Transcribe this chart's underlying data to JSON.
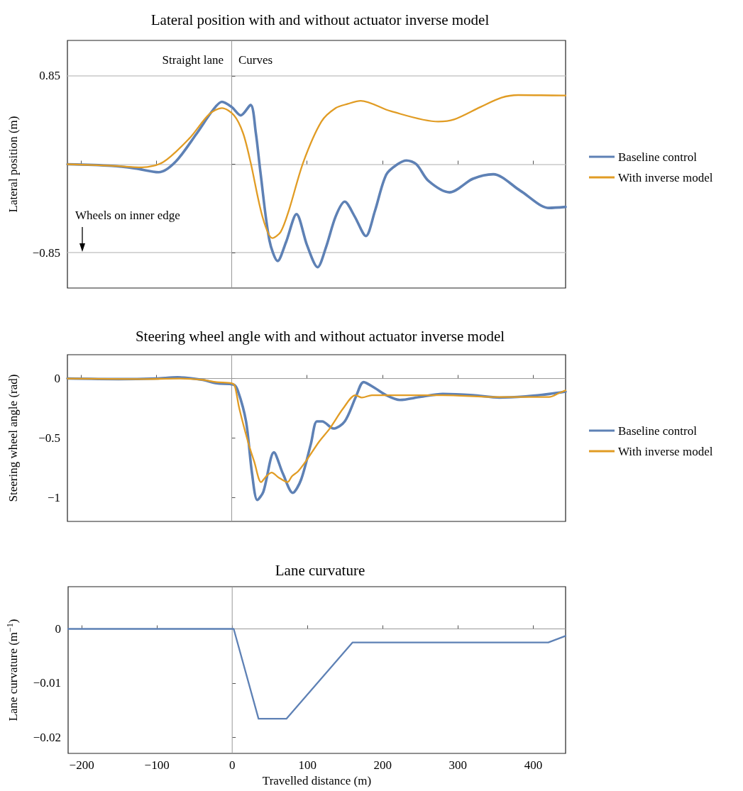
{
  "chart_data": [
    {
      "type": "line",
      "title": "Lateral position with and without actuator inverse model",
      "ylabel": "Lateral position (m)",
      "xlim": [
        -218,
        443
      ],
      "xticks": [
        {
          "value": -200,
          "label": null
        },
        {
          "value": -100,
          "label": null
        },
        {
          "value": 0,
          "label": null
        },
        {
          "value": 100,
          "label": null
        },
        {
          "value": 200,
          "label": null
        },
        {
          "value": 300,
          "label": null
        },
        {
          "value": 400,
          "label": null
        }
      ],
      "ylim": [
        -1.19,
        1.19
      ],
      "yticks": [
        {
          "value": -0.85,
          "label": "−0.85"
        },
        {
          "value": 0,
          "label": null
        },
        {
          "value": 0.85,
          "label": "0.85"
        }
      ],
      "tick_labels": "y",
      "grid": "y",
      "legend": "right",
      "marker": "none",
      "line_style": "solid",
      "ref_lines": [
        {
          "axis": "x",
          "value": 0,
          "color": "#999999"
        }
      ],
      "annotations": [
        "Straight lane",
        "Curves",
        "Wheels on inner edge"
      ],
      "series": [
        {
          "name": "Baseline control",
          "color": "#5e81b5",
          "x": [
            -218,
            -160,
            -128,
            -97,
            -75,
            -47,
            -25,
            -13,
            0,
            12,
            25,
            32,
            38,
            50,
            61,
            72,
            86,
            100,
            114,
            125,
            138,
            150,
            163,
            178,
            190,
            205,
            220,
            232,
            245,
            261,
            289,
            320,
            347,
            383,
            421,
            443
          ],
          "values": [
            0,
            -0.015,
            -0.04,
            -0.077,
            0.02,
            0.29,
            0.52,
            0.6,
            0.55,
            0.47,
            0.57,
            0.3,
            -0.07,
            -0.73,
            -0.93,
            -0.75,
            -0.48,
            -0.78,
            -0.99,
            -0.8,
            -0.5,
            -0.36,
            -0.5,
            -0.69,
            -0.45,
            -0.1,
            0,
            0.036,
            0,
            -0.16,
            -0.27,
            -0.14,
            -0.096,
            -0.255,
            -0.42,
            -0.41
          ]
        },
        {
          "name": "With inverse model",
          "color": "#e19c24",
          "x": [
            -218,
            -160,
            -119,
            -91,
            -56,
            -30,
            -13,
            3,
            15,
            25,
            41,
            54,
            65,
            76,
            95,
            119,
            138,
            154,
            171,
            211,
            274,
            295,
            330,
            358,
            380,
            443
          ],
          "values": [
            0,
            -0.015,
            -0.03,
            0.02,
            0.25,
            0.48,
            0.54,
            0.47,
            0.3,
            0.02,
            -0.51,
            -0.71,
            -0.65,
            -0.44,
            0.02,
            0.41,
            0.54,
            0.58,
            0.61,
            0.51,
            0.41,
            0.43,
            0.55,
            0.64,
            0.665,
            0.66
          ]
        }
      ]
    },
    {
      "type": "line",
      "title": "Steering wheel angle with and without actuator inverse model",
      "ylabel": "Steering wheel angle (rad)",
      "xlim": [
        -218,
        443
      ],
      "xticks": [
        {
          "value": -200,
          "label": null
        },
        {
          "value": -100,
          "label": null
        },
        {
          "value": 0,
          "label": null
        },
        {
          "value": 100,
          "label": null
        },
        {
          "value": 200,
          "label": null
        },
        {
          "value": 300,
          "label": null
        },
        {
          "value": 400,
          "label": null
        }
      ],
      "ylim": [
        -1.2,
        0.2
      ],
      "yticks": [
        {
          "value": -1,
          "label": "−1"
        },
        {
          "value": -0.5,
          "label": "−0.5"
        },
        {
          "value": 0,
          "label": "0"
        }
      ],
      "tick_labels": "y",
      "legend": "right",
      "marker": "none",
      "line_style": "solid",
      "ref_lines": [
        {
          "axis": "x",
          "value": 0,
          "color": "#999999"
        },
        {
          "axis": "y",
          "value": 0,
          "color": "#999999"
        }
      ],
      "series": [
        {
          "name": "Baseline control",
          "color": "#5e81b5",
          "x": [
            -218,
            -150,
            -100,
            -72,
            -40,
            -20,
            2,
            8,
            19,
            27,
            34,
            42,
            56,
            68,
            81,
            92,
            105,
            113,
            120,
            135,
            150,
            165,
            175,
            190,
            205,
            223,
            250,
            280,
            320,
            355,
            390,
            421,
            443
          ],
          "values": [
            0,
            -0.005,
            0,
            0.01,
            -0.01,
            -0.04,
            -0.05,
            -0.1,
            -0.36,
            -0.8,
            -1.02,
            -0.95,
            -0.62,
            -0.8,
            -0.96,
            -0.85,
            -0.55,
            -0.36,
            -0.36,
            -0.42,
            -0.36,
            -0.15,
            -0.03,
            -0.08,
            -0.14,
            -0.18,
            -0.155,
            -0.13,
            -0.14,
            -0.16,
            -0.15,
            -0.13,
            -0.11
          ]
        },
        {
          "name": "With inverse model",
          "color": "#e19c24",
          "x": [
            -218,
            -120,
            -70,
            -40,
            -20,
            0,
            4,
            10,
            22,
            30,
            39,
            46,
            53,
            62,
            74,
            80,
            88,
            100,
            116,
            130,
            148,
            164,
            173,
            186,
            220,
            280,
            350,
            421,
            435,
            443
          ],
          "values": [
            0,
            -0.005,
            0,
            -0.01,
            -0.03,
            -0.04,
            -0.06,
            -0.25,
            -0.54,
            -0.7,
            -0.87,
            -0.82,
            -0.79,
            -0.83,
            -0.87,
            -0.82,
            -0.78,
            -0.68,
            -0.53,
            -0.42,
            -0.25,
            -0.14,
            -0.16,
            -0.14,
            -0.14,
            -0.14,
            -0.155,
            -0.155,
            -0.12,
            -0.1
          ]
        }
      ]
    },
    {
      "type": "line",
      "title": "Lane curvature",
      "ylabel": "Lane curvature (m$^{−1}$)",
      "xlabel": "Travelled distance (m)",
      "xlim": [
        -218,
        443
      ],
      "xticks": [
        {
          "value": -200,
          "label": "−200"
        },
        {
          "value": -100,
          "label": "−100"
        },
        0,
        100,
        200,
        300,
        400
      ],
      "ylim": [
        -0.023,
        0.0078
      ],
      "yticks": [
        {
          "value": -0.02,
          "label": "−0.02"
        },
        {
          "value": -0.01,
          "label": "−0.01"
        },
        {
          "value": 0,
          "label": "0"
        }
      ],
      "marker": "none",
      "line_style": "solid",
      "ref_lines": [
        {
          "axis": "x",
          "value": 0,
          "color": "#999999"
        },
        {
          "axis": "y",
          "value": 0,
          "color": "#999999"
        }
      ],
      "series": [
        {
          "color": "#5e81b5",
          "x": [
            -218,
            2,
            35,
            72,
            160,
            420,
            443
          ],
          "values": [
            0,
            0,
            -0.0166,
            -0.0166,
            -0.0025,
            -0.0025,
            -0.0013
          ]
        }
      ]
    }
  ]
}
